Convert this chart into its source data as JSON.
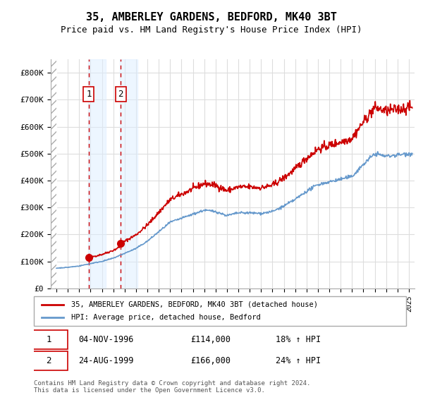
{
  "title": "35, AMBERLEY GARDENS, BEDFORD, MK40 3BT",
  "subtitle": "Price paid vs. HM Land Registry's House Price Index (HPI)",
  "legend_line1": "35, AMBERLEY GARDENS, BEDFORD, MK40 3BT (detached house)",
  "legend_line2": "HPI: Average price, detached house, Bedford",
  "sale1_label": "1",
  "sale1_date": "04-NOV-1996",
  "sale1_price": "£114,000",
  "sale1_hpi": "18% ↑ HPI",
  "sale2_label": "2",
  "sale2_date": "24-AUG-1999",
  "sale2_price": "£166,000",
  "sale2_hpi": "24% ↑ HPI",
  "footer": "Contains HM Land Registry data © Crown copyright and database right 2024.\nThis data is licensed under the Open Government Licence v3.0.",
  "hatch_color": "#cccccc",
  "sale1_x": 1996.84,
  "sale2_x": 1999.65,
  "sale1_y": 114000,
  "sale2_y": 166000,
  "red_line_color": "#cc0000",
  "blue_line_color": "#6699cc",
  "marker_color": "#cc0000",
  "vline_color": "#cc0000",
  "shade_color": "#ddeeff",
  "background_color": "#ffffff",
  "grid_color": "#dddddd",
  "ylim": [
    0,
    850000
  ],
  "xlim_start": 1993.5,
  "xlim_end": 2025.5
}
